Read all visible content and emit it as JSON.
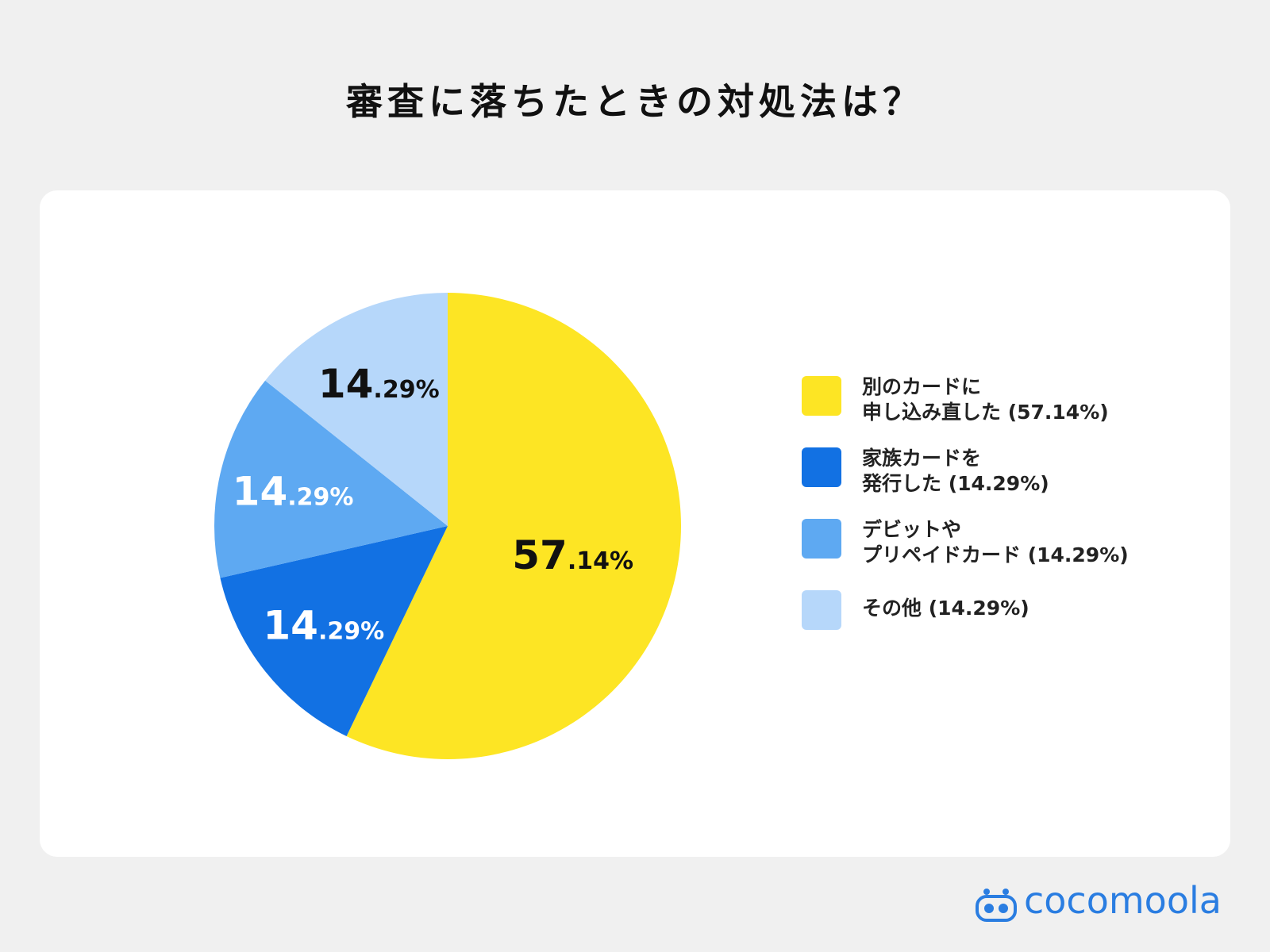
{
  "title": "審査に落ちたときの対処法は？",
  "chart_data": {
    "type": "pie",
    "slices": [
      {
        "label_lines": [
          "別のカードに",
          "申し込み直した (57.14%)"
        ],
        "value": 57.14,
        "big": "57",
        "small": ".14%",
        "color": "#fde524",
        "text_color": "#111111"
      },
      {
        "label_lines": [
          "家族カードを",
          "発行した (14.29%)"
        ],
        "value": 14.29,
        "big": "14",
        "small": ".29%",
        "color": "#1271e3",
        "text_color": "#ffffff"
      },
      {
        "label_lines": [
          "デビットや",
          "プリペイドカード (14.29%)"
        ],
        "value": 14.29,
        "big": "14",
        "small": ".29%",
        "color": "#5ea9f2",
        "text_color": "#ffffff"
      },
      {
        "label_lines": [
          "その他 (14.29%)"
        ],
        "value": 14.29,
        "big": "14",
        "small": ".29%",
        "color": "#b6d7fa",
        "text_color": "#111111"
      }
    ]
  },
  "brand": {
    "name": "cocomoola",
    "color": "#2a7de1"
  }
}
